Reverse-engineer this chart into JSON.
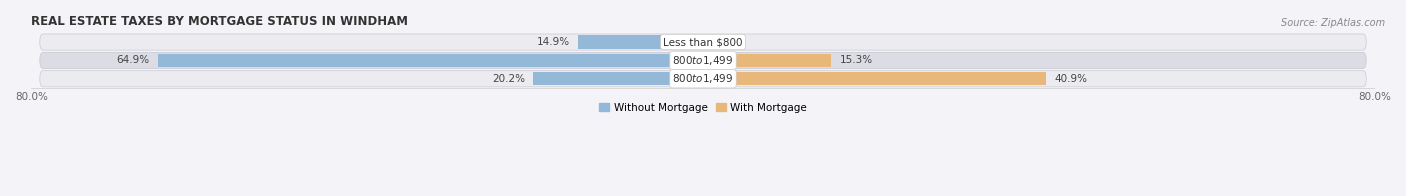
{
  "title": "REAL ESTATE TAXES BY MORTGAGE STATUS IN WINDHAM",
  "source_text": "Source: ZipAtlas.com",
  "categories": [
    "Less than $800",
    "$800 to $1,499",
    "$800 to $1,499"
  ],
  "without_mortgage": [
    14.9,
    64.9,
    20.2
  ],
  "with_mortgage": [
    0.0,
    15.3,
    40.9
  ],
  "color_without": "#93b8d8",
  "color_with": "#e8b87a",
  "row_bg_light": "#ebebf0",
  "row_bg_dark": "#dcdce4",
  "fig_bg": "#f4f4f8",
  "xlim": [
    -80,
    80
  ],
  "xticklabels_left": "80.0%",
  "xticklabels_right": "80.0%",
  "legend_labels": [
    "Without Mortgage",
    "With Mortgage"
  ],
  "title_fontsize": 8.5,
  "label_fontsize": 7.5,
  "tick_fontsize": 7.5,
  "source_fontsize": 7
}
